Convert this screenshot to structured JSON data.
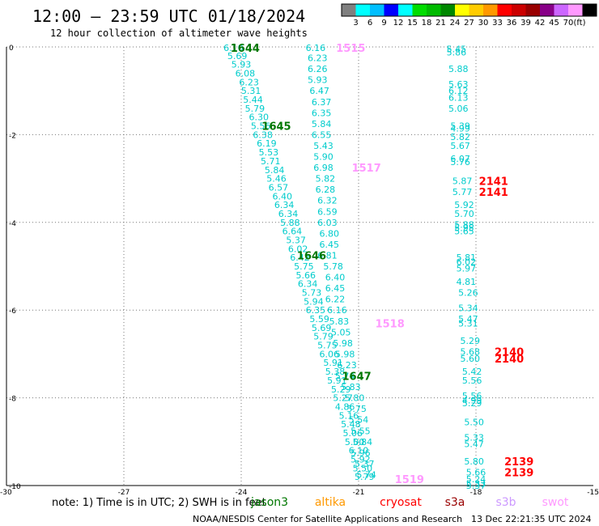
{
  "title": "12:00 – 23:59 UTC 01/18/2024",
  "subtitle": "12 hour collection of altimeter wave heights",
  "legend_ticks": [
    "3",
    "6",
    "9",
    "12",
    "15",
    "18",
    "21",
    "24",
    "27",
    "30",
    "33",
    "36",
    "39",
    "42",
    "45",
    "70"
  ],
  "legend_unit": "(ft)",
  "legend_colors": [
    "#808080",
    "#00ffff",
    "#00bfff",
    "#0000ff",
    "#00ffff",
    "#00dd00",
    "#00bb00",
    "#008800",
    "#ffff00",
    "#ffcc00",
    "#ff9900",
    "#ff0000",
    "#cc0000",
    "#990000",
    "#880088",
    "#cc66ff",
    "#ff99ff",
    "#000000"
  ],
  "note": "note: 1) Time is in UTC; 2) SWH is in feet",
  "satellites": [
    {
      "name": "jason3",
      "color": "#007700"
    },
    {
      "name": "altika",
      "color": "#ff9900"
    },
    {
      "name": "cryosat",
      "color": "#ff0000"
    },
    {
      "name": "s3a",
      "color": "#990000"
    },
    {
      "name": "s3b",
      "color": "#cc99ff"
    },
    {
      "name": "swot",
      "color": "#ff99ff"
    }
  ],
  "footer": "NOAA/NESDIS Center for Satellite Applications and Research",
  "footer_date": "13 Dec 22:21:35 UTC 2024",
  "chart_data": {
    "type": "scatter",
    "xlim": [
      -30,
      -15
    ],
    "ylim": [
      -10,
      0
    ],
    "x_ticks": [
      -30,
      -27,
      -24,
      -21,
      -18,
      -15
    ],
    "y_ticks": [
      0,
      -2,
      -4,
      -6,
      -8,
      -10
    ],
    "grid": true,
    "value_color": "#00cccc",
    "series": [
      {
        "values": [
          {
            "x": -24.2,
            "y": -0.02,
            "v": "6.10"
          },
          {
            "x": -24.1,
            "y": -0.2,
            "v": "5.69"
          },
          {
            "x": -24.0,
            "y": -0.4,
            "v": "5.93"
          },
          {
            "x": -23.9,
            "y": -0.6,
            "v": "6.08"
          },
          {
            "x": -23.8,
            "y": -0.8,
            "v": "6.23"
          },
          {
            "x": -23.75,
            "y": -1.0,
            "v": "5.31"
          },
          {
            "x": -23.7,
            "y": -1.2,
            "v": "5.44"
          },
          {
            "x": -23.65,
            "y": -1.4,
            "v": "5.79"
          },
          {
            "x": -23.55,
            "y": -1.6,
            "v": "6.30"
          },
          {
            "x": -23.5,
            "y": -1.8,
            "v": "5.56"
          },
          {
            "x": -23.45,
            "y": -2.0,
            "v": "6.38"
          },
          {
            "x": -23.35,
            "y": -2.2,
            "v": "6.19"
          },
          {
            "x": -23.3,
            "y": -2.4,
            "v": "5.53"
          },
          {
            "x": -23.25,
            "y": -2.6,
            "v": "5.71"
          },
          {
            "x": -23.15,
            "y": -2.8,
            "v": "5.84"
          },
          {
            "x": -23.1,
            "y": -3.0,
            "v": "5.46"
          },
          {
            "x": -23.05,
            "y": -3.2,
            "v": "6.57"
          },
          {
            "x": -22.95,
            "y": -3.4,
            "v": "6.40"
          },
          {
            "x": -22.9,
            "y": -3.6,
            "v": "6.34"
          },
          {
            "x": -22.8,
            "y": -3.8,
            "v": "6.34"
          },
          {
            "x": -22.75,
            "y": -4.0,
            "v": "5.88"
          },
          {
            "x": -22.7,
            "y": -4.2,
            "v": "6.64"
          },
          {
            "x": -22.6,
            "y": -4.4,
            "v": "5.37"
          },
          {
            "x": -22.55,
            "y": -4.6,
            "v": "6.02"
          },
          {
            "x": -22.5,
            "y": -4.8,
            "v": "6.42"
          },
          {
            "x": -22.4,
            "y": -5.0,
            "v": "5.75"
          },
          {
            "x": -22.35,
            "y": -5.2,
            "v": "5.66"
          },
          {
            "x": -22.3,
            "y": -5.4,
            "v": "6.34"
          },
          {
            "x": -22.2,
            "y": -5.6,
            "v": "5.73"
          },
          {
            "x": -22.15,
            "y": -5.8,
            "v": "5.94"
          },
          {
            "x": -22.1,
            "y": -6.0,
            "v": "6.35"
          },
          {
            "x": -22.0,
            "y": -6.2,
            "v": "5.59"
          },
          {
            "x": -21.95,
            "y": -6.4,
            "v": "5.69"
          },
          {
            "x": -21.9,
            "y": -6.6,
            "v": "5.79"
          },
          {
            "x": -21.8,
            "y": -6.8,
            "v": "5.75"
          },
          {
            "x": -21.75,
            "y": -7.0,
            "v": "6.06"
          },
          {
            "x": -21.65,
            "y": -7.2,
            "v": "5.91"
          },
          {
            "x": -21.6,
            "y": -7.4,
            "v": "5.38"
          },
          {
            "x": -21.55,
            "y": -7.6,
            "v": "5.91"
          },
          {
            "x": -21.45,
            "y": -7.8,
            "v": "5.29"
          },
          {
            "x": -21.4,
            "y": -8.0,
            "v": "5.27"
          },
          {
            "x": -21.35,
            "y": -8.2,
            "v": "4.86"
          },
          {
            "x": -21.25,
            "y": -8.4,
            "v": "5.16"
          },
          {
            "x": -21.2,
            "y": -8.6,
            "v": "5.48"
          },
          {
            "x": -21.15,
            "y": -8.8,
            "v": "5.06"
          },
          {
            "x": -21.1,
            "y": -9.0,
            "v": "5.00"
          },
          {
            "x": -21.0,
            "y": -9.2,
            "v": "6.10"
          },
          {
            "x": -20.95,
            "y": -9.4,
            "v": "5.92"
          },
          {
            "x": -20.9,
            "y": -9.6,
            "v": "5.50"
          },
          {
            "x": -20.85,
            "y": -9.8,
            "v": "5.79"
          }
        ]
      },
      {
        "values": [
          {
            "x": -22.1,
            "y": -0.02,
            "v": "6.16"
          },
          {
            "x": -22.05,
            "y": -0.25,
            "v": "6.23"
          },
          {
            "x": -22.05,
            "y": -0.5,
            "v": "6.26"
          },
          {
            "x": -22.05,
            "y": -0.75,
            "v": "5.93"
          },
          {
            "x": -22.0,
            "y": -1.0,
            "v": "6.47"
          },
          {
            "x": -21.95,
            "y": -1.25,
            "v": "6.37"
          },
          {
            "x": -21.95,
            "y": -1.5,
            "v": "6.35"
          },
          {
            "x": -21.95,
            "y": -1.75,
            "v": "5.84"
          },
          {
            "x": -21.95,
            "y": -2.0,
            "v": "6.55"
          },
          {
            "x": -21.9,
            "y": -2.25,
            "v": "5.43"
          },
          {
            "x": -21.9,
            "y": -2.5,
            "v": "5.90"
          },
          {
            "x": -21.9,
            "y": -2.75,
            "v": "6.98"
          },
          {
            "x": -21.85,
            "y": -3.0,
            "v": "5.82"
          },
          {
            "x": -21.85,
            "y": -3.25,
            "v": "6.28"
          },
          {
            "x": -21.8,
            "y": -3.5,
            "v": "6.32"
          },
          {
            "x": -21.8,
            "y": -3.75,
            "v": "6.59"
          },
          {
            "x": -21.8,
            "y": -4.0,
            "v": "6.03"
          },
          {
            "x": -21.75,
            "y": -4.25,
            "v": "6.80"
          },
          {
            "x": -21.75,
            "y": -4.5,
            "v": "6.45"
          },
          {
            "x": -21.8,
            "y": -4.75,
            "v": "6.81"
          },
          {
            "x": -21.65,
            "y": -5.0,
            "v": "5.78"
          },
          {
            "x": -21.6,
            "y": -5.25,
            "v": "6.40"
          },
          {
            "x": -21.6,
            "y": -5.5,
            "v": "6.45"
          },
          {
            "x": -21.6,
            "y": -5.75,
            "v": "6.22"
          },
          {
            "x": -21.55,
            "y": -6.0,
            "v": "6.16"
          },
          {
            "x": -21.5,
            "y": -6.25,
            "v": "5.83"
          },
          {
            "x": -21.45,
            "y": -6.5,
            "v": "5.05"
          },
          {
            "x": -21.4,
            "y": -6.75,
            "v": "5.98"
          },
          {
            "x": -21.35,
            "y": -7.0,
            "v": "5.98"
          },
          {
            "x": -21.3,
            "y": -7.25,
            "v": "6.23"
          },
          {
            "x": -21.35,
            "y": -7.5,
            "v": "5.74"
          },
          {
            "x": -21.2,
            "y": -7.75,
            "v": "5.83"
          },
          {
            "x": -21.1,
            "y": -8.0,
            "v": "5.80"
          },
          {
            "x": -21.05,
            "y": -8.25,
            "v": "5.75"
          },
          {
            "x": -21.0,
            "y": -8.5,
            "v": "5.54"
          },
          {
            "x": -20.95,
            "y": -8.75,
            "v": "5.55"
          },
          {
            "x": -20.9,
            "y": -9.0,
            "v": "5.84"
          },
          {
            "x": -20.95,
            "y": -9.25,
            "v": "5.96"
          },
          {
            "x": -20.85,
            "y": -9.5,
            "v": "5.37"
          },
          {
            "x": -20.8,
            "y": -9.75,
            "v": "5.74"
          }
        ]
      },
      {
        "values": [
          {
            "x": -18.5,
            "y": -0.05,
            "v": "5.45"
          },
          {
            "x": -18.5,
            "y": -0.12,
            "v": "5.86"
          },
          {
            "x": -18.45,
            "y": -0.5,
            "v": "5.88"
          },
          {
            "x": -18.45,
            "y": -0.85,
            "v": "5.63"
          },
          {
            "x": -18.45,
            "y": -1.0,
            "v": "6.12"
          },
          {
            "x": -18.45,
            "y": -1.15,
            "v": "6.13"
          },
          {
            "x": -18.45,
            "y": -1.4,
            "v": "5.06"
          },
          {
            "x": -18.4,
            "y": -1.8,
            "v": "5.39"
          },
          {
            "x": -18.4,
            "y": -1.85,
            "v": "4.99"
          },
          {
            "x": -18.4,
            "y": -2.05,
            "v": "5.82"
          },
          {
            "x": -18.4,
            "y": -2.25,
            "v": "5.67"
          },
          {
            "x": -18.4,
            "y": -2.55,
            "v": "6.07"
          },
          {
            "x": -18.4,
            "y": -2.62,
            "v": "5.76"
          },
          {
            "x": -18.35,
            "y": -3.05,
            "v": "5.87"
          },
          {
            "x": -18.35,
            "y": -3.3,
            "v": "5.77"
          },
          {
            "x": -18.3,
            "y": -3.6,
            "v": "5.92"
          },
          {
            "x": -18.3,
            "y": -3.8,
            "v": "5.70"
          },
          {
            "x": -18.3,
            "y": -4.05,
            "v": "5.88"
          },
          {
            "x": -18.3,
            "y": -4.12,
            "v": "5.95"
          },
          {
            "x": -18.3,
            "y": -4.2,
            "v": "5.65"
          },
          {
            "x": -18.25,
            "y": -4.8,
            "v": "5.81"
          },
          {
            "x": -18.25,
            "y": -4.9,
            "v": "6.02"
          },
          {
            "x": -18.25,
            "y": -5.05,
            "v": "5.97"
          },
          {
            "x": -18.25,
            "y": -5.35,
            "v": "4.81"
          },
          {
            "x": -18.2,
            "y": -5.6,
            "v": "5.26"
          },
          {
            "x": -18.2,
            "y": -5.95,
            "v": "5.34"
          },
          {
            "x": -18.2,
            "y": -6.2,
            "v": "5.47"
          },
          {
            "x": -18.2,
            "y": -6.3,
            "v": "5.31"
          },
          {
            "x": -18.15,
            "y": -6.7,
            "v": "5.29"
          },
          {
            "x": -18.15,
            "y": -6.95,
            "v": "5.68"
          },
          {
            "x": -18.15,
            "y": -7.1,
            "v": "5.60"
          },
          {
            "x": -18.1,
            "y": -7.4,
            "v": "5.42"
          },
          {
            "x": -18.1,
            "y": -7.6,
            "v": "5.56"
          },
          {
            "x": -18.1,
            "y": -7.95,
            "v": "5.56"
          },
          {
            "x": -18.1,
            "y": -8.05,
            "v": "4.99"
          },
          {
            "x": -18.1,
            "y": -8.12,
            "v": "5.29"
          },
          {
            "x": -18.05,
            "y": -8.55,
            "v": "5.50"
          },
          {
            "x": -18.05,
            "y": -8.9,
            "v": "5.33"
          },
          {
            "x": -18.05,
            "y": -9.05,
            "v": "5.47"
          },
          {
            "x": -18.05,
            "y": -9.45,
            "v": "5.80"
          },
          {
            "x": -18.0,
            "y": -9.7,
            "v": "5.66"
          },
          {
            "x": -18.0,
            "y": -9.85,
            "v": "5.24"
          },
          {
            "x": -18.0,
            "y": -9.95,
            "v": "5.33"
          },
          {
            "x": -18.0,
            "y": -10.0,
            "v": "5.37"
          }
        ]
      }
    ],
    "pass_labels": [
      {
        "x": -23.9,
        "y": -0.02,
        "label": "1644",
        "satellite": "jason3"
      },
      {
        "x": -23.1,
        "y": -1.8,
        "label": "1645",
        "satellite": "jason3"
      },
      {
        "x": -22.2,
        "y": -4.75,
        "label": "1646",
        "satellite": "jason3"
      },
      {
        "x": -21.05,
        "y": -7.5,
        "label": "1647",
        "satellite": "jason3"
      },
      {
        "x": -21.2,
        "y": -0.02,
        "label": "1515",
        "satellite": "swot"
      },
      {
        "x": -20.8,
        "y": -2.75,
        "label": "1517",
        "satellite": "swot"
      },
      {
        "x": -20.2,
        "y": -6.3,
        "label": "1518",
        "satellite": "swot"
      },
      {
        "x": -19.7,
        "y": -9.85,
        "label": "1519",
        "satellite": "swot"
      },
      {
        "x": -17.55,
        "y": -3.05,
        "label": "2141",
        "satellite": "cryosat"
      },
      {
        "x": -17.55,
        "y": -3.3,
        "label": "2141",
        "satellite": "cryosat"
      },
      {
        "x": -17.15,
        "y": -6.95,
        "label": "2140",
        "satellite": "cryosat"
      },
      {
        "x": -17.15,
        "y": -7.1,
        "label": "2140",
        "satellite": "cryosat"
      },
      {
        "x": -16.9,
        "y": -9.45,
        "label": "2139",
        "satellite": "cryosat"
      },
      {
        "x": -16.9,
        "y": -9.7,
        "label": "2139",
        "satellite": "cryosat"
      }
    ]
  }
}
